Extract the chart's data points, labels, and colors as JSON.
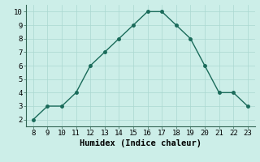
{
  "x": [
    8,
    9,
    10,
    11,
    12,
    13,
    14,
    15,
    16,
    17,
    18,
    19,
    20,
    21,
    22,
    23
  ],
  "y": [
    2,
    3,
    3,
    4,
    6,
    7,
    8,
    9,
    10,
    10,
    9,
    8,
    6,
    4,
    4,
    3
  ],
  "line_color": "#1a6b5a",
  "marker": "o",
  "marker_size": 2.5,
  "line_width": 1.0,
  "xlabel": "Humidex (Indice chaleur)",
  "xlim": [
    7.5,
    23.5
  ],
  "ylim": [
    1.5,
    10.5
  ],
  "xticks": [
    8,
    9,
    10,
    11,
    12,
    13,
    14,
    15,
    16,
    17,
    18,
    19,
    20,
    21,
    22,
    23
  ],
  "yticks": [
    2,
    3,
    4,
    5,
    6,
    7,
    8,
    9,
    10
  ],
  "bg_color": "#cceee8",
  "grid_color": "#aad8d0",
  "tick_label_fontsize": 6.5,
  "xlabel_fontsize": 7.5,
  "font_family": "monospace"
}
